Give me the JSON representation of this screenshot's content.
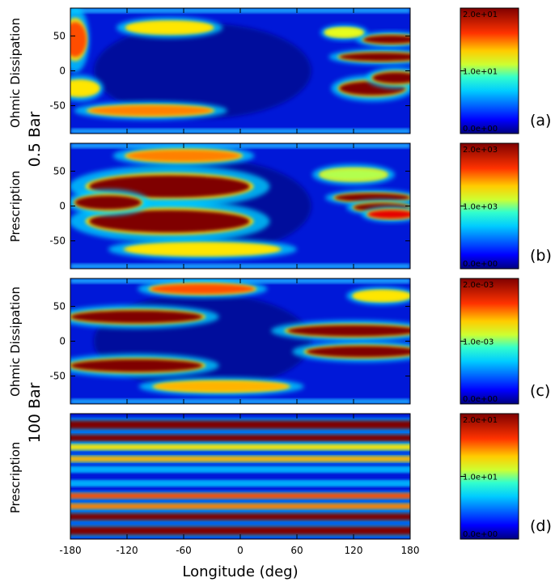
{
  "figure": {
    "row_labels": {
      "ohmic_top": "Ohmic Dissipation",
      "bar_top": "0.5  Bar",
      "prescription_top": "Prescription",
      "ohmic_bottom": "Ohmic Dissipation",
      "bar_bottom": "100  Bar",
      "prescription_bottom": "Prescription"
    },
    "colormap": [
      "#00007f",
      "#0000ff",
      "#0080ff",
      "#00ffff",
      "#80ff80",
      "#ffff00",
      "#ff8000",
      "#ff0000",
      "#7f0000"
    ]
  },
  "chart_data": [
    {
      "type": "heatmap",
      "panel": "(a)",
      "description_level": "0.5 Bar",
      "quantity": "Ohmic Dissipation",
      "xlabel": "Longitude (deg)",
      "xlim": [
        -180,
        180
      ],
      "ylim": [
        -90,
        90
      ],
      "xticks": [
        "-180",
        "-120",
        "-60",
        "0",
        "60",
        "120",
        "180"
      ],
      "yticks": [
        "-50",
        "0",
        "50"
      ],
      "x_tick_labels_shown": false,
      "colorbar": {
        "range": [
          0,
          20
        ],
        "tick_labels": [
          "0.0e+00",
          "1.0e+01",
          "2.0e+01"
        ]
      },
      "features": [
        {
          "lon": -75,
          "lat": 62,
          "w": 45,
          "h": 8,
          "v": 13
        },
        {
          "lon": -95,
          "lat": -57,
          "w": 65,
          "h": 7,
          "v": 15
        },
        {
          "lon": -175,
          "lat": 45,
          "w": 12,
          "h": 25,
          "v": 16
        },
        {
          "lon": -170,
          "lat": -25,
          "w": 20,
          "h": 10,
          "v": 13
        },
        {
          "lon": 150,
          "lat": 20,
          "w": 45,
          "h": 6,
          "v": 20
        },
        {
          "lon": 160,
          "lat": 45,
          "w": 30,
          "h": 6,
          "v": 20
        },
        {
          "lon": 140,
          "lat": -25,
          "w": 35,
          "h": 10,
          "v": 20
        },
        {
          "lon": 165,
          "lat": -10,
          "w": 25,
          "h": 8,
          "v": 20
        },
        {
          "lon": 110,
          "lat": 55,
          "w": 20,
          "h": 6,
          "v": 12
        }
      ]
    },
    {
      "type": "heatmap",
      "panel": "(b)",
      "description_level": "0.5 Bar",
      "quantity": "Prescription",
      "xlabel": "Longitude (deg)",
      "xlim": [
        -180,
        180
      ],
      "ylim": [
        -90,
        90
      ],
      "xticks": [
        "-180",
        "-120",
        "-60",
        "0",
        "60",
        "120",
        "180"
      ],
      "yticks": [
        "-50",
        "0",
        "50"
      ],
      "x_tick_labels_shown": false,
      "colorbar": {
        "range": [
          0,
          2000
        ],
        "tick_labels": [
          "0.0e+00",
          "1.0e+03",
          "2.0e+03"
        ]
      },
      "features": [
        {
          "lon": -75,
          "lat": 28,
          "w": 85,
          "h": 16,
          "v": 2000
        },
        {
          "lon": -75,
          "lat": -22,
          "w": 85,
          "h": 16,
          "v": 2000
        },
        {
          "lon": -140,
          "lat": 5,
          "w": 35,
          "h": 10,
          "v": 2000
        },
        {
          "lon": -60,
          "lat": 72,
          "w": 60,
          "h": 8,
          "v": 1500
        },
        {
          "lon": -40,
          "lat": -62,
          "w": 80,
          "h": 8,
          "v": 1300
        },
        {
          "lon": 140,
          "lat": 12,
          "w": 40,
          "h": 6,
          "v": 2000
        },
        {
          "lon": 150,
          "lat": -2,
          "w": 30,
          "h": 6,
          "v": 2000
        },
        {
          "lon": 160,
          "lat": -12,
          "w": 25,
          "h": 6,
          "v": 1800
        },
        {
          "lon": 120,
          "lat": 45,
          "w": 35,
          "h": 8,
          "v": 1100
        }
      ]
    },
    {
      "type": "heatmap",
      "panel": "(c)",
      "description_level": "100 Bar",
      "quantity": "Ohmic Dissipation",
      "xlabel": "Longitude (deg)",
      "xlim": [
        -180,
        180
      ],
      "ylim": [
        -90,
        90
      ],
      "xticks": [
        "-180",
        "-120",
        "-60",
        "0",
        "60",
        "120",
        "180"
      ],
      "yticks": [
        "-50",
        "0",
        "50"
      ],
      "x_tick_labels_shown": false,
      "colorbar": {
        "range": [
          0,
          0.002
        ],
        "tick_labels": [
          "0.0e+00",
          "1.0e-03",
          "2.0e-03"
        ]
      },
      "features": [
        {
          "lon": -110,
          "lat": 35,
          "w": 70,
          "h": 9,
          "v": 0.002
        },
        {
          "lon": -110,
          "lat": -35,
          "w": 70,
          "h": 9,
          "v": 0.002
        },
        {
          "lon": -40,
          "lat": 75,
          "w": 55,
          "h": 7,
          "v": 0.0016
        },
        {
          "lon": -20,
          "lat": -65,
          "w": 70,
          "h": 7,
          "v": 0.0014
        },
        {
          "lon": 120,
          "lat": 15,
          "w": 70,
          "h": 8,
          "v": 0.002
        },
        {
          "lon": 130,
          "lat": -15,
          "w": 60,
          "h": 8,
          "v": 0.002
        },
        {
          "lon": 150,
          "lat": 65,
          "w": 30,
          "h": 7,
          "v": 0.0013
        }
      ]
    },
    {
      "type": "heatmap",
      "panel": "(d)",
      "description_level": "100 Bar",
      "quantity": "Prescription",
      "xlabel": "Longitude (deg)",
      "xlim": [
        -180,
        180
      ],
      "ylim": [
        -90,
        90
      ],
      "xticks": [
        "-180",
        "-120",
        "-60",
        "0",
        "60",
        "120",
        "180"
      ],
      "yticks": [],
      "x_tick_labels_shown": true,
      "colorbar": {
        "range": [
          0,
          20
        ],
        "tick_labels": [
          "0.0e+00",
          "1.0e+01",
          "2.0e+01"
        ]
      },
      "bands": [
        {
          "lat": 74,
          "h": 6,
          "v": 20
        },
        {
          "lat": 55,
          "h": 5,
          "v": 20
        },
        {
          "lat": 42,
          "h": 4,
          "v": 13
        },
        {
          "lat": 25,
          "h": 4,
          "v": 14
        },
        {
          "lat": 10,
          "h": 3,
          "v": 6
        },
        {
          "lat": -10,
          "h": 3,
          "v": 6
        },
        {
          "lat": -28,
          "h": 4,
          "v": 16
        },
        {
          "lat": -43,
          "h": 4,
          "v": 15
        },
        {
          "lat": -58,
          "h": 5,
          "v": 20
        },
        {
          "lat": -78,
          "h": 6,
          "v": 20
        }
      ]
    }
  ]
}
